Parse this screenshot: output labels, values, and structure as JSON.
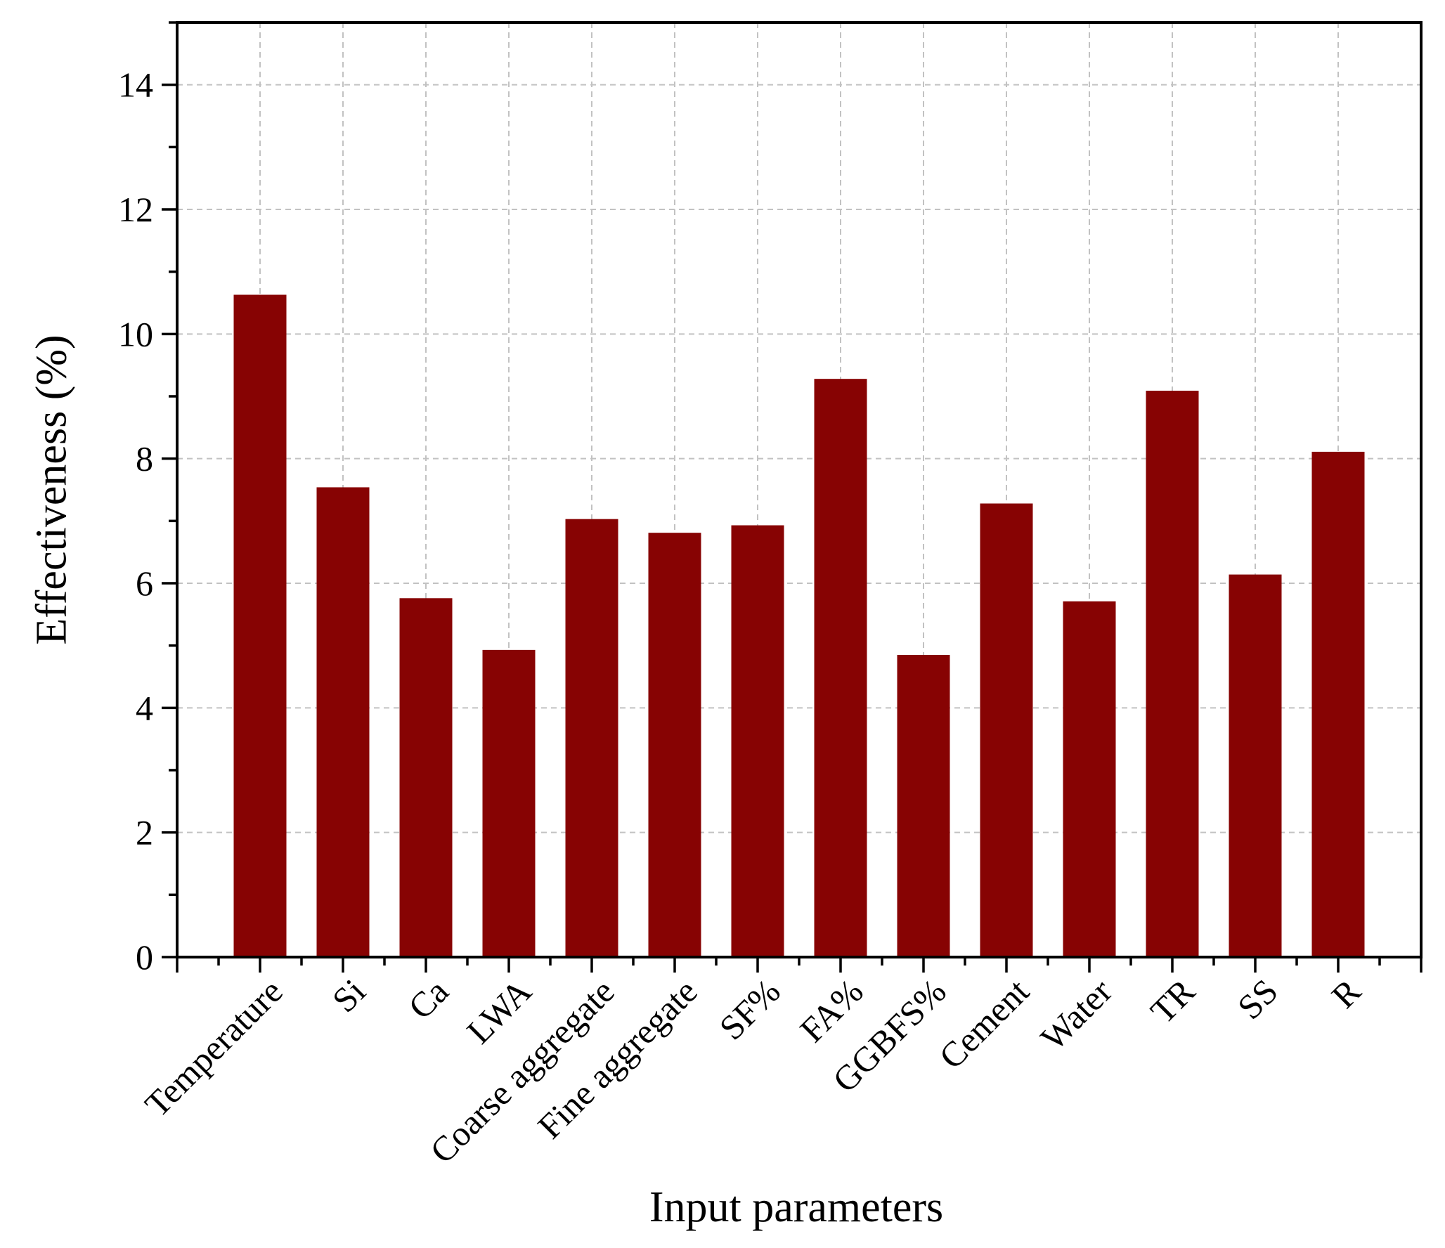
{
  "chart_data": {
    "type": "bar",
    "title": "",
    "xlabel": "Input parameters",
    "ylabel": "Effectiveness (%)",
    "ylim": [
      0,
      15
    ],
    "yticks": [
      0,
      2,
      4,
      6,
      8,
      10,
      12,
      14
    ],
    "ytick_labels": [
      "0",
      "2",
      "4",
      "6",
      "8",
      "10",
      "12",
      "14"
    ],
    "grid": true,
    "bar_color": "#870303",
    "categories": [
      "Temperature",
      "Si",
      "Ca",
      "LWA",
      "Coarse aggregate",
      "Fine aggregate",
      "SF%",
      "FA%",
      "GGBFS%",
      "Cement",
      "Water",
      "TR",
      "SS",
      "R"
    ],
    "values": [
      10.63,
      7.54,
      5.76,
      4.93,
      7.03,
      6.81,
      6.93,
      9.28,
      4.85,
      7.28,
      5.71,
      9.09,
      6.14,
      8.11
    ]
  }
}
